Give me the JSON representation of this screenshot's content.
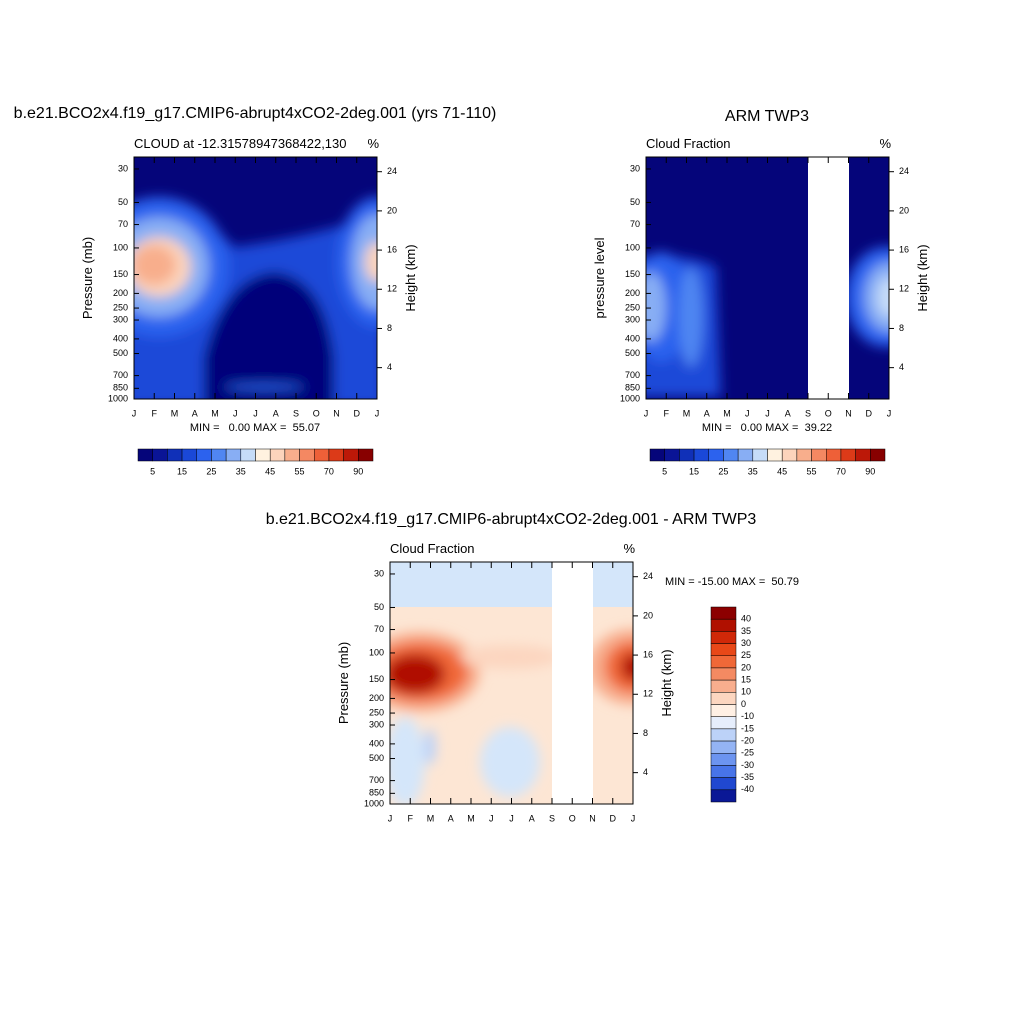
{
  "chart_data": [
    {
      "type": "contour",
      "title": "b.e21.BCO2x4.f19_g17.CMIP6-abrupt4xCO2-2deg.001 (yrs 71-110)",
      "left_title": "CLOUD at -12.31578947368422,130",
      "right_title": "%",
      "ylabel": "Pressure (mb)",
      "y2label": "Height (km)",
      "categories": [
        "J",
        "F",
        "M",
        "A",
        "M",
        "J",
        "J",
        "A",
        "S",
        "O",
        "N",
        "D",
        "J"
      ],
      "ylog": true,
      "ylim": [
        1000,
        25
      ],
      "yticks": [
        30,
        50,
        70,
        100,
        150,
        200,
        250,
        300,
        400,
        500,
        700,
        850,
        1000
      ],
      "y2lim": [
        0.8,
        25.5
      ],
      "y2ticks": [
        4,
        8,
        12,
        16,
        20,
        24
      ],
      "summary": "MIN =   0.00 MAX =  55.07",
      "colorbar": {
        "orientation": "horizontal",
        "colors": [
          "#05057a",
          "#0a1496",
          "#1030b8",
          "#1a48d8",
          "#2c62ee",
          "#5086f2",
          "#88aef4",
          "#c6dcf8",
          "#fff2e0",
          "#fcd4bc",
          "#f8ae8c",
          "#f48862",
          "#ee6038",
          "#dc3a18",
          "#bc1808",
          "#880000"
        ],
        "ticks": [
          5,
          15,
          25,
          35,
          45,
          55,
          70,
          90
        ]
      }
    },
    {
      "type": "contour",
      "title": "ARM TWP3",
      "left_title": "Cloud Fraction",
      "right_title": "%",
      "ylabel": "pressure level",
      "y2label": "Height (km)",
      "categories": [
        "J",
        "F",
        "M",
        "A",
        "M",
        "J",
        "J",
        "A",
        "S",
        "O",
        "N",
        "D",
        "J"
      ],
      "ylog": true,
      "ylim": [
        1000,
        25
      ],
      "yticks": [
        30,
        50,
        70,
        100,
        150,
        200,
        250,
        300,
        400,
        500,
        700,
        850,
        1000
      ],
      "y2lim": [
        0.8,
        25.5
      ],
      "y2ticks": [
        4,
        8,
        12,
        16,
        20,
        24
      ],
      "summary": "MIN =   0.00 MAX =  39.22",
      "colorbar": {
        "orientation": "horizontal",
        "colors": [
          "#05057a",
          "#0a1496",
          "#1030b8",
          "#1a48d8",
          "#2c62ee",
          "#5086f2",
          "#88aef4",
          "#c6dcf8",
          "#fff2e0",
          "#fcd4bc",
          "#f8ae8c",
          "#f48862",
          "#ee6038",
          "#dc3a18",
          "#bc1808",
          "#880000"
        ],
        "ticks": [
          5,
          15,
          25,
          35,
          45,
          55,
          70,
          90
        ]
      }
    },
    {
      "type": "contour",
      "title": "b.e21.BCO2x4.f19_g17.CMIP6-abrupt4xCO2-2deg.001 - ARM TWP3",
      "left_title": "Cloud Fraction",
      "right_title": "%",
      "ylabel": "Pressure (mb)",
      "y2label": "Height (km)",
      "categories": [
        "J",
        "F",
        "M",
        "A",
        "M",
        "J",
        "J",
        "A",
        "S",
        "O",
        "N",
        "D",
        "J"
      ],
      "ylog": true,
      "ylim": [
        1000,
        25
      ],
      "yticks": [
        30,
        50,
        70,
        100,
        150,
        200,
        250,
        300,
        400,
        500,
        700,
        850,
        1000
      ],
      "y2lim": [
        0.8,
        25.5
      ],
      "y2ticks": [
        4,
        8,
        12,
        16,
        20,
        24
      ],
      "summary": "MIN = -15.00 MAX =  50.79",
      "colorbar": {
        "orientation": "vertical",
        "colors": [
          "#8c0000",
          "#b01000",
          "#d02808",
          "#e84818",
          "#f06838",
          "#f48a62",
          "#f8ae8e",
          "#fcd6c0",
          "#fff0e4",
          "#e6eefc",
          "#bcd2f8",
          "#94b4f4",
          "#6c94f0",
          "#4874e8",
          "#2048d0",
          "#0a1896"
        ],
        "ticks": [
          40,
          35,
          30,
          25,
          20,
          15,
          10,
          0,
          -10,
          -15,
          -20,
          -25,
          -30,
          -35,
          -40
        ]
      }
    }
  ]
}
